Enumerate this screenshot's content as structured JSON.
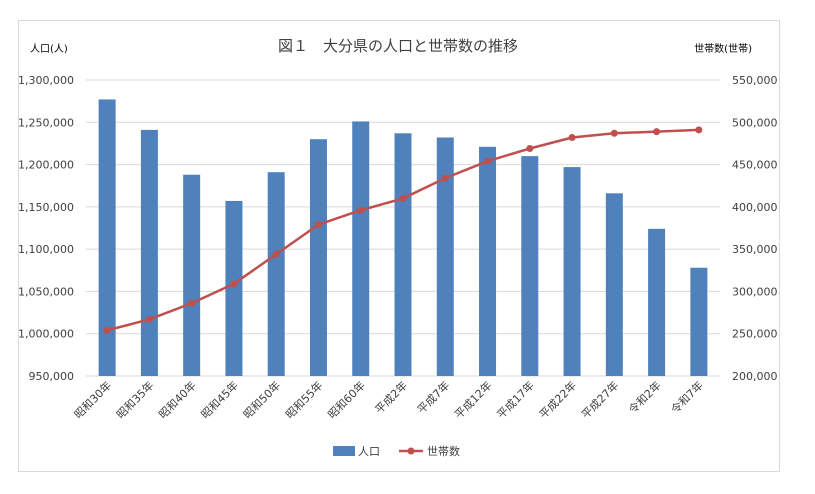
{
  "chart_data": {
    "type": "bar",
    "title": "図１　大分県の人口と世帯数の推移",
    "ylabel": "人口(人)",
    "y2label": "世帯数(世帯)",
    "ylim": [
      950000,
      1300000
    ],
    "y2lim": [
      200000,
      550000
    ],
    "yticks": [
      "950,000",
      "1,000,000",
      "1,050,000",
      "1,100,000",
      "1,150,000",
      "1,200,000",
      "1,250,000",
      "1,300,000"
    ],
    "y2ticks": [
      "200,000",
      "250,000",
      "300,000",
      "350,000",
      "400,000",
      "450,000",
      "500,000",
      "550,000"
    ],
    "categories": [
      "昭和30年",
      "昭和35年",
      "昭和40年",
      "昭和45年",
      "昭和50年",
      "昭和55年",
      "昭和60年",
      "平成2年",
      "平成7年",
      "平成12年",
      "平成17年",
      "平成22年",
      "平成27年",
      "令和2年",
      "令和7年"
    ],
    "series": [
      {
        "name": "人口",
        "type": "bar",
        "axis": "left",
        "color": "#4f81bd",
        "values": [
          1277000,
          1241000,
          1188000,
          1157000,
          1191000,
          1230000,
          1251000,
          1237000,
          1232000,
          1221000,
          1210000,
          1197000,
          1166000,
          1124000,
          1078000
        ]
      },
      {
        "name": "世帯数",
        "type": "line",
        "axis": "right",
        "color": "#c0504d",
        "values": [
          254000,
          267000,
          286000,
          309000,
          344000,
          379000,
          396000,
          410000,
          434000,
          454000,
          469000,
          482000,
          487000,
          489000,
          491000
        ]
      }
    ],
    "legend": "bottom",
    "grid": true
  }
}
